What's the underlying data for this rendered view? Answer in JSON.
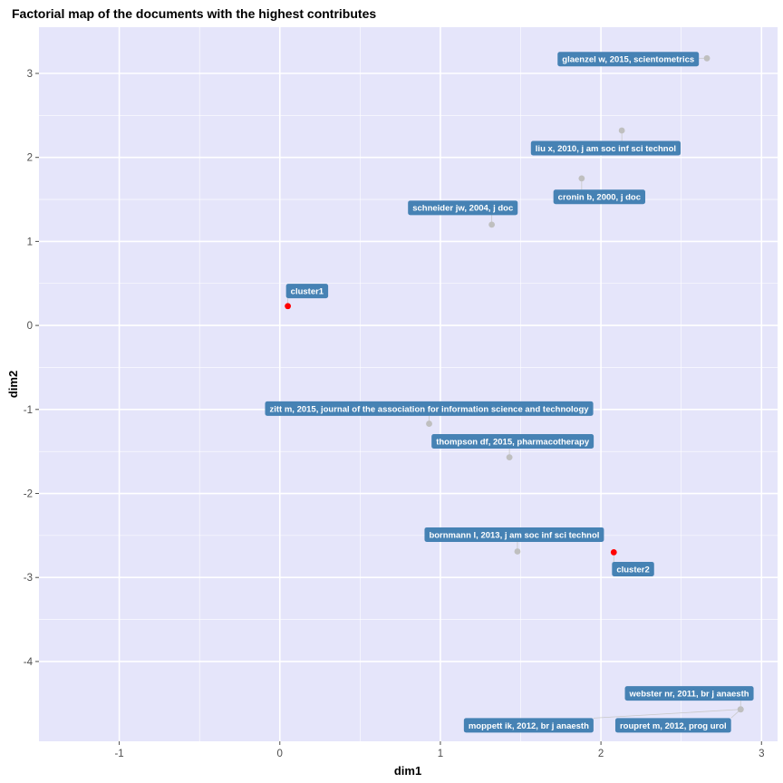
{
  "chart_data": {
    "type": "scatter",
    "title": "Factorial map of the documents with the highest contributes",
    "xlabel": "dim1",
    "ylabel": "dim2",
    "xlim": [
      -1.5,
      3.1
    ],
    "ylim": [
      -4.95,
      3.55
    ],
    "xticks": [
      "-1",
      "0",
      "1",
      "2",
      "3"
    ],
    "yticks": [
      "-4",
      "-3",
      "-2",
      "-1",
      "0",
      "1",
      "2",
      "3"
    ],
    "grid": true,
    "colors": {
      "panel": "#e5e5fa",
      "grid": "#ffffff",
      "label_box": "#4682b4",
      "label_text": "#ffffff",
      "document_point": "#bfbfbf",
      "cluster_point": "#ff0000",
      "leader_line": "#c8c8c8"
    },
    "points": [
      {
        "label": "glaenzel w, 2015, scientometrics",
        "x": 2.66,
        "y": 3.18,
        "kind": "document",
        "lx": 2.17,
        "ly": 3.17
      },
      {
        "label": "liu x, 2010, j am soc inf sci technol",
        "x": 2.13,
        "y": 2.32,
        "kind": "document",
        "lx": 2.03,
        "ly": 2.11
      },
      {
        "label": "cronin b, 2000, j doc",
        "x": 1.88,
        "y": 1.75,
        "kind": "document",
        "lx": 1.99,
        "ly": 1.53
      },
      {
        "label": "schneider jw, 2004, j doc",
        "x": 1.32,
        "y": 1.2,
        "kind": "document",
        "lx": 1.14,
        "ly": 1.4
      },
      {
        "label": "cluster1",
        "x": 0.05,
        "y": 0.23,
        "kind": "cluster",
        "lx": 0.17,
        "ly": 0.41
      },
      {
        "label": "zitt m, 2015, journal of the association for information science and technology",
        "x": 0.93,
        "y": -1.17,
        "kind": "document",
        "lx": 0.93,
        "ly": -0.99
      },
      {
        "label": "thompson df, 2015, pharmacotherapy",
        "x": 1.43,
        "y": -1.57,
        "kind": "document",
        "lx": 1.45,
        "ly": -1.38
      },
      {
        "label": "bornmann l, 2013, j am soc inf sci technol",
        "x": 1.48,
        "y": -2.69,
        "kind": "document",
        "lx": 1.46,
        "ly": -2.49
      },
      {
        "label": "cluster2",
        "x": 2.08,
        "y": -2.7,
        "kind": "cluster",
        "lx": 2.2,
        "ly": -2.9
      },
      {
        "label": "webster nr, 2011, br j anaesth",
        "x": 2.87,
        "y": -4.57,
        "kind": "document",
        "lx": 2.55,
        "ly": -4.38
      },
      {
        "label": "moppett ik, 2012, br j anaesth",
        "x": 2.87,
        "y": -4.57,
        "kind": "document",
        "lx": 1.55,
        "ly": -4.76
      },
      {
        "label": "roupret m, 2012, prog urol",
        "x": 2.87,
        "y": -4.57,
        "kind": "document",
        "lx": 2.45,
        "ly": -4.76
      }
    ]
  }
}
